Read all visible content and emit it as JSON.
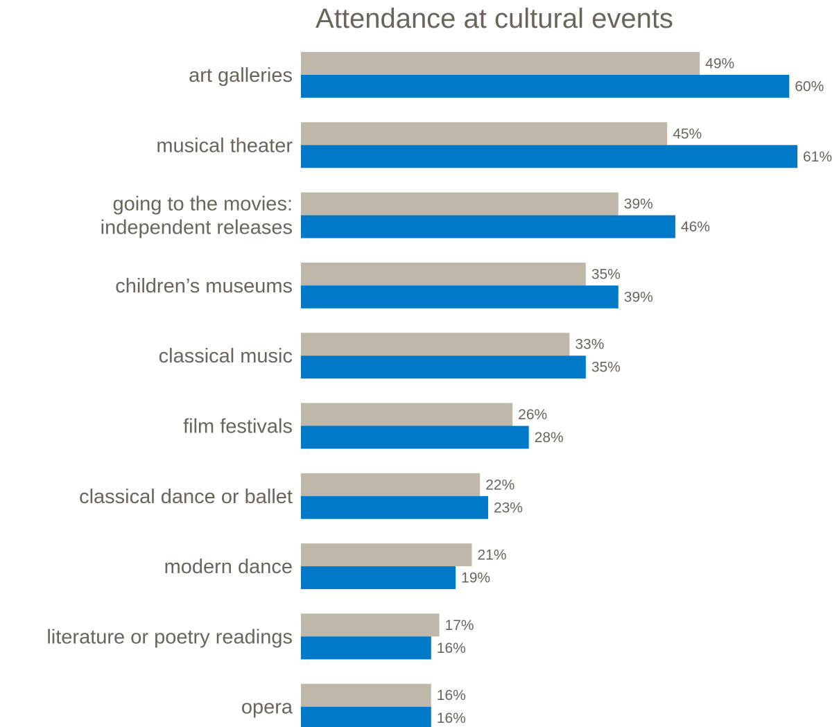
{
  "chart_data": {
    "type": "bar",
    "orientation": "horizontal",
    "title": "Attendance at cultural events",
    "xlabel": "",
    "ylabel": "",
    "xlim": [
      0,
      61
    ],
    "grid": false,
    "legend": "none",
    "categories": [
      [
        "art galleries"
      ],
      [
        "musical theater"
      ],
      [
        "going to the movies:",
        "independent releases"
      ],
      [
        "children’s museums"
      ],
      [
        "classical music"
      ],
      [
        "film festivals"
      ],
      [
        "classical dance or ballet"
      ],
      [
        "modern dance"
      ],
      [
        "literature or poetry readings"
      ],
      [
        "opera"
      ]
    ],
    "series": [
      {
        "color": "#bfb8aa",
        "values": [
          49,
          45,
          39,
          35,
          33,
          26,
          22,
          21,
          17,
          16
        ],
        "labels": [
          "49%",
          "45%",
          "39%",
          "35%",
          "33%",
          "26%",
          "22%",
          "21%",
          "17%",
          "16%"
        ]
      },
      {
        "color": "#0079c8",
        "values": [
          60,
          61,
          46,
          39,
          35,
          28,
          23,
          19,
          16,
          16
        ],
        "labels": [
          "60%",
          "61%",
          "46%",
          "39%",
          "35%",
          "28%",
          "23%",
          "19%",
          "16%",
          "16%"
        ]
      }
    ]
  }
}
